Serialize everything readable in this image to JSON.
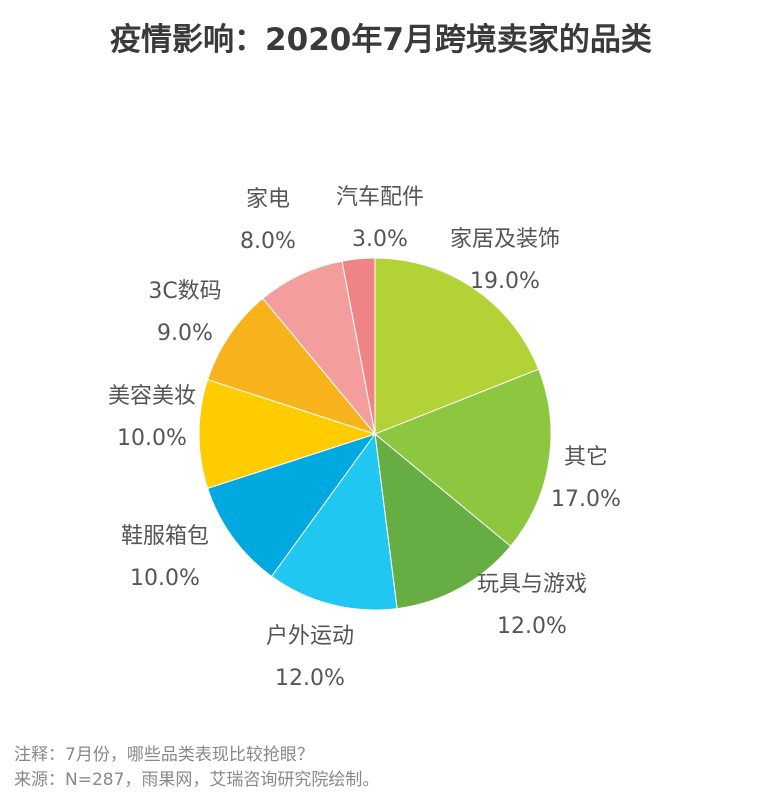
{
  "chart_data": {
    "type": "pie",
    "title": "疫情影响：2020年7月跨境卖家的品类",
    "categories": [
      "家居及装饰",
      "其它",
      "玩具与游戏",
      "户外运动",
      "鞋服箱包",
      "美容美妆",
      "3C数码",
      "家电",
      "汽车配件"
    ],
    "values": [
      19.0,
      17.0,
      12.0,
      12.0,
      10.0,
      10.0,
      9.0,
      8.0,
      3.0
    ],
    "labels": [
      "19.0%",
      "17.0%",
      "12.0%",
      "12.0%",
      "10.0%",
      "10.0%",
      "9.0%",
      "8.0%",
      "3.0%"
    ],
    "colors": [
      "#b3d236",
      "#8dc63f",
      "#66ad44",
      "#1fc7f1",
      "#00a9e0",
      "#ffcc00",
      "#f8b21c",
      "#f49d9d",
      "#f08484"
    ],
    "start": "top",
    "direction": "clockwise"
  },
  "notes": {
    "note": "注释：7月份，哪些品类表现比较抢眼？",
    "source": "来源：N=287，雨果网，艾瑞咨询研究院绘制。"
  }
}
